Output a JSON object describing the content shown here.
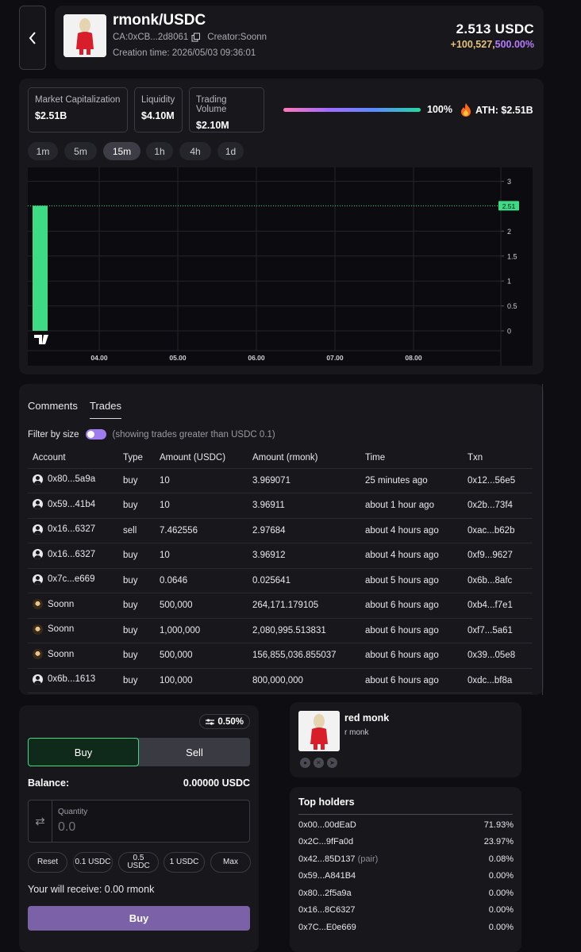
{
  "header": {
    "pair": "rmonk/USDC",
    "ca": "CA:0xCB...2d8061",
    "creator": "Creator:Soonn",
    "creation_time": "Creation time: 2026/05/03 09:36:01",
    "price": "2.513 USDC",
    "change_abs": "+100,527,",
    "change_pct": "500.00%"
  },
  "stats": {
    "market_cap_label": "Market Capitalization",
    "market_cap_value": "$2.51B",
    "liquidity_label": "Liquidity",
    "liquidity_value": "$4.10M",
    "volume_label": "Trading Volume",
    "volume_value": "$2.10M",
    "progress_label": "100%",
    "progress": 1.0,
    "ath": "ATH: $2.51B"
  },
  "timeframes": [
    "1m",
    "5m",
    "15m",
    "1h",
    "4h",
    "1d"
  ],
  "active_timeframe": "15m",
  "chart_data": {
    "type": "bar",
    "x_ticks": [
      "04.00",
      "05.00",
      "06.00",
      "07.00",
      "08.00"
    ],
    "y_ticks": [
      "0",
      "0.5",
      "1",
      "1.5",
      "2",
      "3"
    ],
    "ylim": [
      0,
      3.2
    ],
    "bars": [
      {
        "x_index": 0,
        "value": 2.51
      }
    ],
    "last_price_label": "2.51",
    "last_price": 2.51,
    "bar_color": "#3ddc84"
  },
  "tabs": {
    "comments": "Comments",
    "trades": "Trades"
  },
  "filter": {
    "label": "Filter by size",
    "hint": "(showing trades greater than USDC 0.1)"
  },
  "trade_headers": [
    "Account",
    "Type",
    "Amount (USDC)",
    "Amount (rmonk)",
    "Time",
    "Txn"
  ],
  "trades": [
    {
      "account": "0x80...5a9a",
      "icon": "user-icon",
      "type": "buy",
      "usdc": "10",
      "rmonk": "3.969071",
      "time": "25 minutes ago",
      "txn": "0x12...56e5"
    },
    {
      "account": "0x59...41b4",
      "icon": "user-icon",
      "type": "buy",
      "usdc": "10",
      "rmonk": "3.96911",
      "time": "about 1 hour ago",
      "txn": "0x2b...73f4"
    },
    {
      "account": "0x16...6327",
      "icon": "user-icon",
      "type": "sell",
      "usdc": "7.462556",
      "rmonk": "2.97684",
      "time": "about 4 hours ago",
      "txn": "0xac...b62b"
    },
    {
      "account": "0x16...6327",
      "icon": "user-icon",
      "type": "buy",
      "usdc": "10",
      "rmonk": "3.96912",
      "time": "about 4 hours ago",
      "txn": "0xf9...9627"
    },
    {
      "account": "0x7c...e669",
      "icon": "user-icon",
      "type": "buy",
      "usdc": "0.0646",
      "rmonk": "0.025641",
      "time": "about 5 hours ago",
      "txn": "0x6b...8afc"
    },
    {
      "account": "Soonn",
      "icon": "soonn-avatar-icon",
      "type": "buy",
      "usdc": "500,000",
      "rmonk": "264,171.179105",
      "time": "about 6 hours ago",
      "txn": "0xb4...f7e1"
    },
    {
      "account": "Soonn",
      "icon": "soonn-avatar-icon",
      "type": "buy",
      "usdc": "1,000,000",
      "rmonk": "2,080,995.513831",
      "time": "about 6 hours ago",
      "txn": "0xf7...5a61"
    },
    {
      "account": "Soonn",
      "icon": "soonn-avatar-icon",
      "type": "buy",
      "usdc": "500,000",
      "rmonk": "156,855,036.855037",
      "time": "about 6 hours ago",
      "txn": "0x39...05e8"
    },
    {
      "account": "0x6b...1613",
      "icon": "user-icon",
      "type": "buy",
      "usdc": "100,000",
      "rmonk": "800,000,000",
      "time": "about 6 hours ago",
      "txn": "0xdc...bf8a"
    }
  ],
  "trade_box": {
    "slippage": "0.50%",
    "buy_tab": "Buy",
    "sell_tab": "Sell",
    "balance_label": "Balance:",
    "balance_value": "0.00000 USDC",
    "quantity_label": "Quantity",
    "quantity_placeholder": "0.0",
    "presets": [
      "Reset",
      "0.1 USDC",
      "0.5 USDC",
      "1 USDC",
      "Max"
    ],
    "receive": "Your will receive: 0.00 rmonk",
    "buy_button": "Buy"
  },
  "token_info": {
    "name": "red monk",
    "symbol": "r monk",
    "socials": [
      "website-icon",
      "x-icon",
      "telegram-icon"
    ]
  },
  "holders": {
    "title": "Top holders",
    "rows": [
      {
        "addr": "0x00...00dEaD",
        "tag": "",
        "pct": "71.93%"
      },
      {
        "addr": "0x2C...9fFa0d",
        "tag": "",
        "pct": "23.97%"
      },
      {
        "addr": "0x42...85D137",
        "tag": "(pair)",
        "pct": "0.08%"
      },
      {
        "addr": "0x59...A841B4",
        "tag": "",
        "pct": "0.00%"
      },
      {
        "addr": "0x80...2f5a9a",
        "tag": "",
        "pct": "0.00%"
      },
      {
        "addr": "0x16...8C6327",
        "tag": "",
        "pct": "0.00%"
      },
      {
        "addr": "0x7C...E0e669",
        "tag": "",
        "pct": "0.00%"
      }
    ]
  }
}
